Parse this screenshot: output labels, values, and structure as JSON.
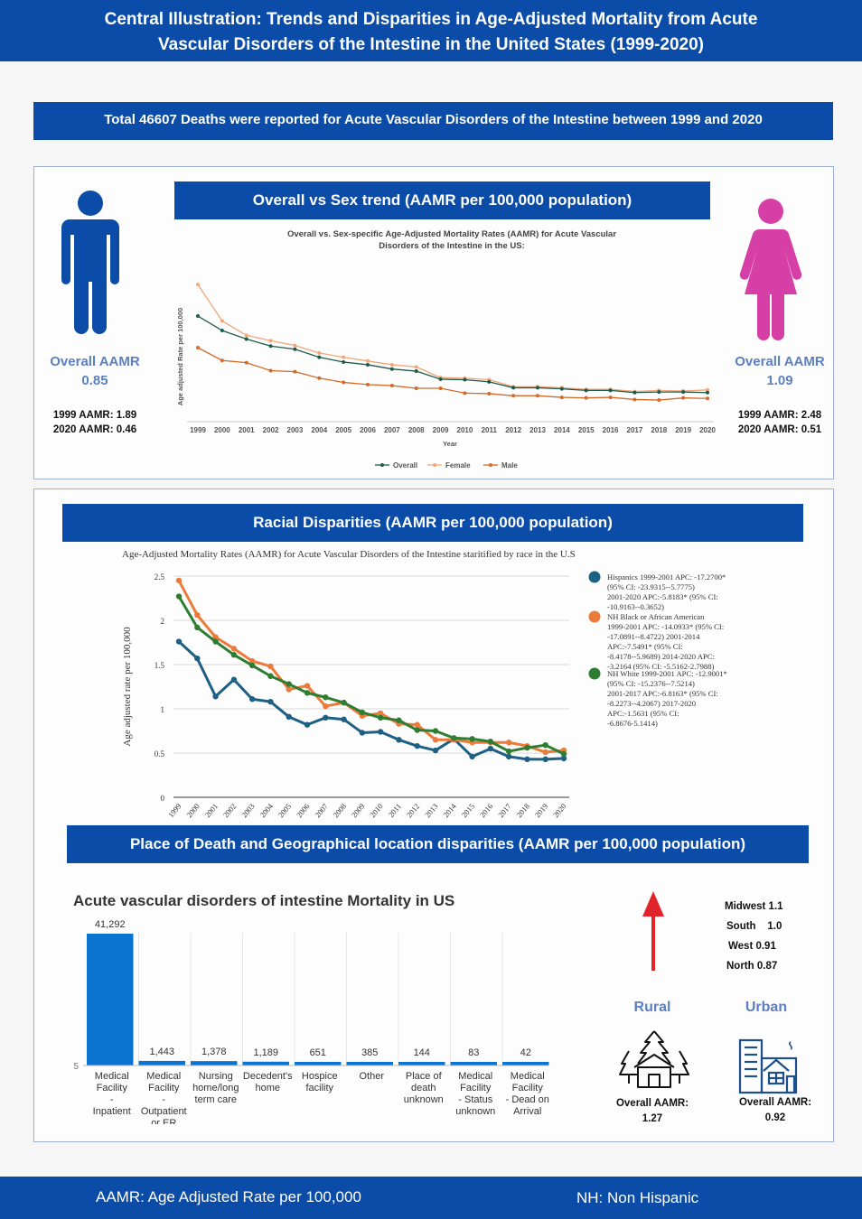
{
  "header": {
    "line1": "Central Illustration: Trends and Disparities in Age-Adjusted Mortality from Acute",
    "line2": "Vascular Disorders of the Intestine in the United States (1999-2020)"
  },
  "total_banner": "Total 46607 Deaths were reported for Acute Vascular Disorders of the Intestine  between 1999 and 2020",
  "sex_section": {
    "banner": "Overall vs Sex trend (AAMR per 100,000 population)",
    "left": {
      "label": "Overall AAMR",
      "value": "0.85",
      "line1": "1999 AAMR: 1.89",
      "line2": "2020 AAMR: 0.46",
      "icon_color": "#0a4ca8"
    },
    "right": {
      "label": "Overall AAMR",
      "value": "1.09",
      "line1": "1999 AAMR:  2.48",
      "line2": "2020 AAMR:  0.51",
      "icon_color": "#d63fa6"
    }
  },
  "race_section": {
    "banner": "Racial Disparities (AAMR per 100,000 population)"
  },
  "place_section": {
    "banner": "Place of Death  and Geographical location disparities (AAMR per 100,000 population)"
  },
  "geo": {
    "regions": [
      "Midwest 1.1",
      "South    1.0",
      "West  0.91",
      "North  0.87"
    ],
    "rural": {
      "label": "Rural",
      "aamr_label": "Overall AAMR:",
      "aamr_value": "1.27"
    },
    "urban": {
      "label": "Urban",
      "aamr_label": "Overall AAMR:",
      "aamr_value": "0.92"
    },
    "arrow_color": "#e0242a"
  },
  "footer": {
    "left": "AAMR: Age Adjusted Rate per 100,000",
    "right": "NH: Non Hispanic"
  },
  "colors": {
    "banner": "#0a4ca8",
    "overall": "#1e5a4a",
    "female": "#f0a77a",
    "male": "#d46a2a",
    "hispanic": "#1e5f84",
    "black": "#ec7a3a",
    "white": "#2e7d32",
    "bar": "#0a74d0"
  },
  "chart_data": [
    {
      "type": "line",
      "title": "Overall vs. Sex-specific Age-Adjusted Mortality Rates (AAMR) for Acute Vascular Disorders of the Intestine in the US:",
      "xlabel": "Year",
      "ylabel": "Age adjusted Rate per 100,000",
      "x": [
        "1999",
        "2000",
        "2001",
        "2002",
        "2003",
        "2004",
        "2005",
        "2006",
        "2007",
        "2008",
        "2009",
        "2010",
        "2011",
        "2012",
        "2013",
        "2014",
        "2015",
        "2016",
        "2017",
        "2018",
        "2019",
        "2020"
      ],
      "ylim": [
        0,
        2.6
      ],
      "series": [
        {
          "name": "Overall",
          "values": [
            1.89,
            1.62,
            1.46,
            1.33,
            1.27,
            1.12,
            1.03,
            0.98,
            0.9,
            0.86,
            0.71,
            0.7,
            0.66,
            0.55,
            0.55,
            0.53,
            0.5,
            0.5,
            0.46,
            0.47,
            0.47,
            0.46
          ]
        },
        {
          "name": "Female",
          "values": [
            2.48,
            1.8,
            1.53,
            1.43,
            1.34,
            1.2,
            1.12,
            1.05,
            0.98,
            0.94,
            0.74,
            0.73,
            0.7,
            0.57,
            0.57,
            0.55,
            0.52,
            0.52,
            0.48,
            0.5,
            0.49,
            0.51
          ]
        },
        {
          "name": "Male",
          "values": [
            1.3,
            1.06,
            1.02,
            0.87,
            0.85,
            0.73,
            0.65,
            0.61,
            0.59,
            0.54,
            0.54,
            0.45,
            0.44,
            0.4,
            0.4,
            0.37,
            0.36,
            0.37,
            0.33,
            0.32,
            0.36,
            0.35
          ]
        }
      ],
      "legend": "bottom"
    },
    {
      "type": "line",
      "title": "Age-Adjusted Mortality Rates (AAMR) for Acute Vascular Disorders of the Intestine staritified  by race in the U.S",
      "ylabel": "Age adjusted rate per 100,000",
      "x": [
        "1999",
        "2000",
        "2001",
        "2002",
        "2003",
        "2004",
        "2005",
        "2006",
        "2007",
        "2008",
        "2009",
        "2010",
        "2011",
        "2012",
        "2013",
        "2014",
        "2015",
        "2016",
        "2017",
        "2018",
        "2019",
        "2020"
      ],
      "ylim": [
        0,
        2.5
      ],
      "yticks": [
        "0",
        "0.5",
        "1",
        "1.5",
        "2",
        "2.5"
      ],
      "series": [
        {
          "name": "Hispanics 1999-2001 APC: -17.2700* (95% CI: -23.9315--5.7775) 2001-2020 APC:-5.8183* (95% CI: -10.9163--0.3652)",
          "values": [
            1.76,
            1.57,
            1.14,
            1.33,
            1.11,
            1.08,
            0.91,
            0.82,
            0.9,
            0.88,
            0.73,
            0.74,
            0.65,
            0.58,
            0.53,
            0.66,
            0.46,
            0.55,
            0.46,
            0.43,
            0.43,
            0.44
          ]
        },
        {
          "name": "NH Black or African American 1999-2001 APC: -14.0933* (95% CI: -17.0891--8.4722) 2001-2014 APC:-7.5491* (95% CI: -8.4178--5.9689) 2014-2020 APC: -3.2164 (95% CI: -5.5162-2.7988)",
          "values": [
            2.45,
            2.06,
            1.81,
            1.68,
            1.54,
            1.48,
            1.22,
            1.26,
            1.03,
            1.07,
            0.92,
            0.95,
            0.83,
            0.82,
            0.65,
            0.65,
            0.62,
            0.62,
            0.62,
            0.58,
            0.51,
            0.53
          ]
        },
        {
          "name": "NH White 1999-2001 APC: -12.9001* (95% CI: -15.2376--7.5214) 2001-2017 APC:-6.8163* (95% CI: -8.2273--4.2067) 2017-2020 APC:-1.5631 (95% CI: -6.8676-5.1414)",
          "values": [
            2.27,
            1.92,
            1.76,
            1.61,
            1.49,
            1.37,
            1.28,
            1.18,
            1.13,
            1.07,
            0.96,
            0.9,
            0.87,
            0.76,
            0.75,
            0.67,
            0.66,
            0.63,
            0.52,
            0.56,
            0.59,
            0.49
          ]
        }
      ],
      "legend": "right"
    },
    {
      "type": "bar",
      "title": "Acute vascular disorders of intestine Mortality in US",
      "categories": [
        "Medical Facility - Inpatient",
        "Medical Facility - Outpatient or ER",
        "Nursing home/long term care",
        "Decedent's home",
        "Hospice facility",
        "Other",
        "Place of death unknown",
        "Medical Facility - Status unknown",
        "Medical Facility - Dead on Arrival"
      ],
      "values": [
        41292,
        1443,
        1378,
        1189,
        651,
        385,
        144,
        83,
        42
      ],
      "value_labels": [
        "41,292",
        "1,443",
        "1,378",
        "1,189",
        "651",
        "385",
        "144",
        "83",
        "42"
      ],
      "y_axis_label": "5"
    }
  ]
}
